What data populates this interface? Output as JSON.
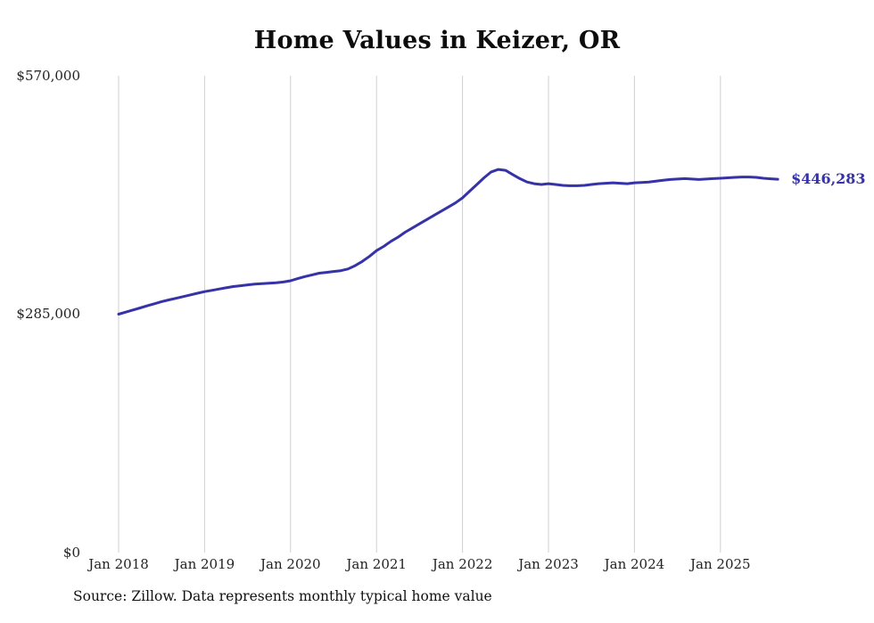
{
  "title": "Home Values in Keizer, OR",
  "source_note": "Source: Zillow. Data represents monthly typical home value",
  "end_label": "$446,283",
  "colors": {
    "line": "#3632a8",
    "grid": "#cfcfcf",
    "text": "#222222"
  },
  "chart_data": {
    "type": "line",
    "title": "Home Values in Keizer, OR",
    "frequency": "monthly",
    "start": "Jan 2018",
    "end": "Sep 2025",
    "x_tick_labels": [
      "Jan 2018",
      "Jan 2019",
      "Jan 2020",
      "Jan 2021",
      "Jan 2022",
      "Jan 2023",
      "Jan 2024",
      "Jan 2025"
    ],
    "y_tick_labels": [
      "$570,000",
      "$285,000",
      "$0"
    ],
    "ylim": [
      0,
      570000
    ],
    "grid": "vertical-only",
    "legend": "none",
    "end_value": 446283,
    "series": [
      {
        "name": "Typical home value",
        "values": [
          285000,
          287500,
          290000,
          292500,
          295000,
          297500,
          300000,
          302000,
          304000,
          306000,
          308000,
          310000,
          312000,
          313500,
          315000,
          316500,
          318000,
          319000,
          320000,
          321000,
          321500,
          322000,
          322500,
          323500,
          325000,
          327500,
          330000,
          332000,
          334000,
          335000,
          336000,
          337000,
          339000,
          343000,
          348000,
          354000,
          361000,
          366000,
          372000,
          377000,
          383000,
          388000,
          393000,
          398000,
          403000,
          408000,
          413000,
          418000,
          424000,
          432000,
          440000,
          448000,
          455000,
          458000,
          457000,
          452000,
          447000,
          443000,
          441000,
          440000,
          441000,
          440000,
          439000,
          438500,
          438500,
          439000,
          440000,
          441000,
          441500,
          442000,
          441500,
          441000,
          442000,
          442500,
          443000,
          444000,
          445000,
          446000,
          446500,
          447000,
          446500,
          446000,
          446500,
          447000,
          447500,
          448000,
          448500,
          449000,
          449000,
          448500,
          447500,
          446800,
          446283
        ]
      }
    ]
  }
}
